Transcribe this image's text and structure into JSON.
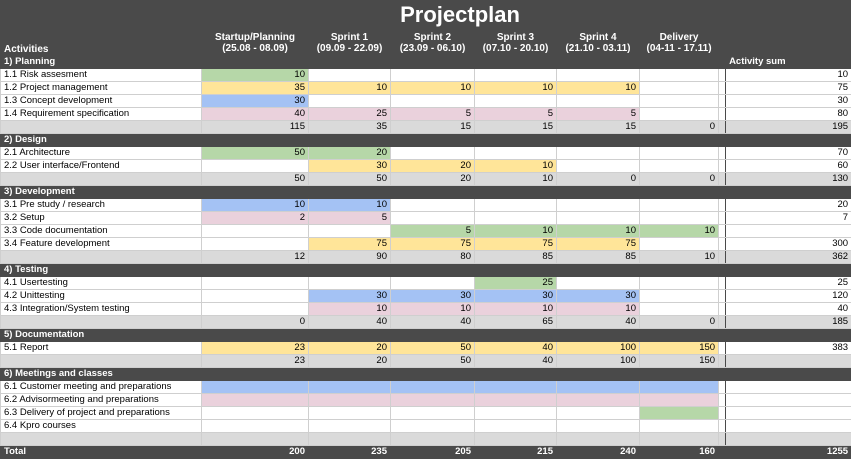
{
  "title": "Projectplan",
  "header": {
    "activities_label": "Activities",
    "activity_sum_label": "Activity sum",
    "columns": [
      {
        "name": "Startup/Planning",
        "dates": "(25.08 - 08.09)"
      },
      {
        "name": "Sprint 1",
        "dates": "(09.09 - 22.09)"
      },
      {
        "name": "Sprint 2",
        "dates": "(23.09 - 06.10)"
      },
      {
        "name": "Sprint 3",
        "dates": "(07.10 - 20.10)"
      },
      {
        "name": "Sprint 4",
        "dates": "(21.10 - 03.11)"
      },
      {
        "name": "Delivery",
        "dates": "(04-11 - 17.11)"
      }
    ]
  },
  "sections": [
    {
      "title": "1) Planning",
      "rows": [
        {
          "label": "1.1 Risk assesment",
          "cells": [
            {
              "v": "10",
              "c": "g"
            },
            {
              "v": "",
              "c": ""
            },
            {
              "v": "",
              "c": ""
            },
            {
              "v": "",
              "c": ""
            },
            {
              "v": "",
              "c": ""
            },
            {
              "v": "",
              "c": ""
            }
          ],
          "sum": "10"
        },
        {
          "label": "1.2 Project management",
          "cells": [
            {
              "v": "35",
              "c": "y"
            },
            {
              "v": "10",
              "c": "y"
            },
            {
              "v": "10",
              "c": "y"
            },
            {
              "v": "10",
              "c": "y"
            },
            {
              "v": "10",
              "c": "y"
            },
            {
              "v": "",
              "c": ""
            }
          ],
          "sum": "75"
        },
        {
          "label": "1.3 Concept development",
          "cells": [
            {
              "v": "30",
              "c": "b"
            },
            {
              "v": "",
              "c": ""
            },
            {
              "v": "",
              "c": ""
            },
            {
              "v": "",
              "c": ""
            },
            {
              "v": "",
              "c": ""
            },
            {
              "v": "",
              "c": ""
            }
          ],
          "sum": "30"
        },
        {
          "label": "1.4 Requirement specification",
          "cells": [
            {
              "v": "40",
              "c": "p"
            },
            {
              "v": "25",
              "c": "p"
            },
            {
              "v": "5",
              "c": "p"
            },
            {
              "v": "5",
              "c": "p"
            },
            {
              "v": "5",
              "c": "p"
            },
            {
              "v": "",
              "c": ""
            }
          ],
          "sum": "80"
        }
      ],
      "subtotal": [
        "115",
        "35",
        "15",
        "15",
        "15",
        "0"
      ],
      "subtotal_sum": "195"
    },
    {
      "title": "2) Design",
      "rows": [
        {
          "label": "2.1 Architecture",
          "cells": [
            {
              "v": "50",
              "c": "g"
            },
            {
              "v": "20",
              "c": "g"
            },
            {
              "v": "",
              "c": ""
            },
            {
              "v": "",
              "c": ""
            },
            {
              "v": "",
              "c": ""
            },
            {
              "v": "",
              "c": ""
            }
          ],
          "sum": "70"
        },
        {
          "label": "2.2 User interface/Frontend",
          "cells": [
            {
              "v": "",
              "c": ""
            },
            {
              "v": "30",
              "c": "y"
            },
            {
              "v": "20",
              "c": "y"
            },
            {
              "v": "10",
              "c": "y"
            },
            {
              "v": "",
              "c": ""
            },
            {
              "v": "",
              "c": ""
            }
          ],
          "sum": "60"
        }
      ],
      "subtotal": [
        "50",
        "50",
        "20",
        "10",
        "0",
        "0"
      ],
      "subtotal_sum": "130"
    },
    {
      "title": "3) Development",
      "rows": [
        {
          "label": "3.1 Pre study / research",
          "cells": [
            {
              "v": "10",
              "c": "b"
            },
            {
              "v": "10",
              "c": "b"
            },
            {
              "v": "",
              "c": ""
            },
            {
              "v": "",
              "c": ""
            },
            {
              "v": "",
              "c": ""
            },
            {
              "v": "",
              "c": ""
            }
          ],
          "sum": "20"
        },
        {
          "label": "3.2 Setup",
          "cells": [
            {
              "v": "2",
              "c": "p"
            },
            {
              "v": "5",
              "c": "p"
            },
            {
              "v": "",
              "c": ""
            },
            {
              "v": "",
              "c": ""
            },
            {
              "v": "",
              "c": ""
            },
            {
              "v": "",
              "c": ""
            }
          ],
          "sum": "7"
        },
        {
          "label": "3.3 Code documentation",
          "cells": [
            {
              "v": "",
              "c": ""
            },
            {
              "v": "",
              "c": ""
            },
            {
              "v": "5",
              "c": "g"
            },
            {
              "v": "10",
              "c": "g"
            },
            {
              "v": "10",
              "c": "g"
            },
            {
              "v": "10",
              "c": "g"
            }
          ],
          "sum": ""
        },
        {
          "label": "3.4 Feature development",
          "cells": [
            {
              "v": "",
              "c": ""
            },
            {
              "v": "75",
              "c": "y"
            },
            {
              "v": "75",
              "c": "y"
            },
            {
              "v": "75",
              "c": "y"
            },
            {
              "v": "75",
              "c": "y"
            },
            {
              "v": "",
              "c": ""
            }
          ],
          "sum": "300"
        }
      ],
      "subtotal": [
        "12",
        "90",
        "80",
        "85",
        "85",
        "10"
      ],
      "subtotal_sum": "362"
    },
    {
      "title": "4) Testing",
      "rows": [
        {
          "label": "4.1 Usertesting",
          "cells": [
            {
              "v": "",
              "c": ""
            },
            {
              "v": "",
              "c": ""
            },
            {
              "v": "",
              "c": ""
            },
            {
              "v": "25",
              "c": "g"
            },
            {
              "v": "",
              "c": ""
            },
            {
              "v": "",
              "c": ""
            }
          ],
          "sum": "25"
        },
        {
          "label": "4.2 Unittesting",
          "cells": [
            {
              "v": "",
              "c": ""
            },
            {
              "v": "30",
              "c": "b"
            },
            {
              "v": "30",
              "c": "b"
            },
            {
              "v": "30",
              "c": "b"
            },
            {
              "v": "30",
              "c": "b"
            },
            {
              "v": "",
              "c": ""
            }
          ],
          "sum": "120"
        },
        {
          "label": "4.3 Integration/System testing",
          "cells": [
            {
              "v": "",
              "c": ""
            },
            {
              "v": "10",
              "c": "p"
            },
            {
              "v": "10",
              "c": "p"
            },
            {
              "v": "10",
              "c": "p"
            },
            {
              "v": "10",
              "c": "p"
            },
            {
              "v": "",
              "c": ""
            }
          ],
          "sum": "40"
        }
      ],
      "subtotal": [
        "0",
        "40",
        "40",
        "65",
        "40",
        "0"
      ],
      "subtotal_sum": "185"
    },
    {
      "title": "5) Documentation",
      "rows": [
        {
          "label": "5.1 Report",
          "cells": [
            {
              "v": "23",
              "c": "y"
            },
            {
              "v": "20",
              "c": "y"
            },
            {
              "v": "50",
              "c": "y"
            },
            {
              "v": "40",
              "c": "y"
            },
            {
              "v": "100",
              "c": "y"
            },
            {
              "v": "150",
              "c": "y"
            }
          ],
          "sum": "383"
        }
      ],
      "subtotal": [
        "23",
        "20",
        "50",
        "40",
        "100",
        "150"
      ],
      "subtotal_sum": ""
    },
    {
      "title": "6) Meetings and classes",
      "rows": [
        {
          "label": "6.1 Customer meeting and preparations",
          "cells": [
            {
              "v": "",
              "c": "b"
            },
            {
              "v": "",
              "c": "b"
            },
            {
              "v": "",
              "c": "b"
            },
            {
              "v": "",
              "c": "b"
            },
            {
              "v": "",
              "c": "b"
            },
            {
              "v": "",
              "c": "b"
            }
          ],
          "sum": ""
        },
        {
          "label": "6.2 Advisormeeting and preparations",
          "cells": [
            {
              "v": "",
              "c": "p"
            },
            {
              "v": "",
              "c": "p"
            },
            {
              "v": "",
              "c": "p"
            },
            {
              "v": "",
              "c": "p"
            },
            {
              "v": "",
              "c": "p"
            },
            {
              "v": "",
              "c": "p"
            }
          ],
          "sum": ""
        },
        {
          "label": "6.3 Delivery of project and preparations",
          "cells": [
            {
              "v": "",
              "c": ""
            },
            {
              "v": "",
              "c": ""
            },
            {
              "v": "",
              "c": ""
            },
            {
              "v": "",
              "c": ""
            },
            {
              "v": "",
              "c": ""
            },
            {
              "v": "",
              "c": "g"
            }
          ],
          "sum": ""
        },
        {
          "label": "6.4 Kpro courses",
          "cells": [
            {
              "v": "",
              "c": ""
            },
            {
              "v": "",
              "c": ""
            },
            {
              "v": "",
              "c": ""
            },
            {
              "v": "",
              "c": ""
            },
            {
              "v": "",
              "c": ""
            },
            {
              "v": "",
              "c": ""
            }
          ],
          "sum": ""
        }
      ],
      "subtotal": [
        "",
        "",
        "",
        "",
        "",
        ""
      ],
      "subtotal_sum": ""
    }
  ],
  "total": {
    "label": "Total",
    "values": [
      "200",
      "235",
      "205",
      "215",
      "240",
      "160"
    ],
    "sum": "1255"
  },
  "colors": {
    "green": "#b6d7a8",
    "yellow": "#ffe599",
    "blue": "#a4c2f4",
    "pink": "#ead1dc",
    "header_dark": "#4a4a4a",
    "subtotal_gray": "#dadada"
  }
}
